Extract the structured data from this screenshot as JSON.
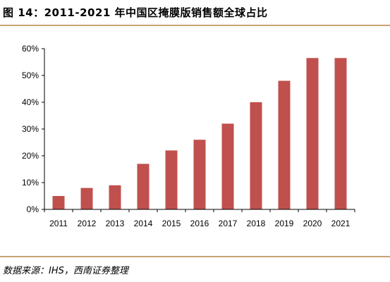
{
  "header": {
    "title": "图 14：2011-2021 年中国区掩膜版销售额全球占比"
  },
  "footer": {
    "source": "数据来源：IHS，西南证券整理"
  },
  "colors": {
    "bar": "#c0504d",
    "rule": "#c6a472",
    "axis": "#000000"
  },
  "chart_data": {
    "type": "bar",
    "title": "",
    "xlabel": "",
    "ylabel": "",
    "categories": [
      "2011",
      "2012",
      "2013",
      "2014",
      "2015",
      "2016",
      "2017",
      "2018",
      "2019",
      "2020",
      "2021"
    ],
    "values": [
      5,
      8,
      9,
      17,
      22,
      26,
      32,
      40,
      48,
      56.5,
      56.5
    ],
    "ylim": [
      0,
      60
    ],
    "yticks": [
      "0%",
      "10%",
      "20%",
      "30%",
      "40%",
      "50%",
      "60%"
    ],
    "grid": false,
    "legend": "none"
  }
}
